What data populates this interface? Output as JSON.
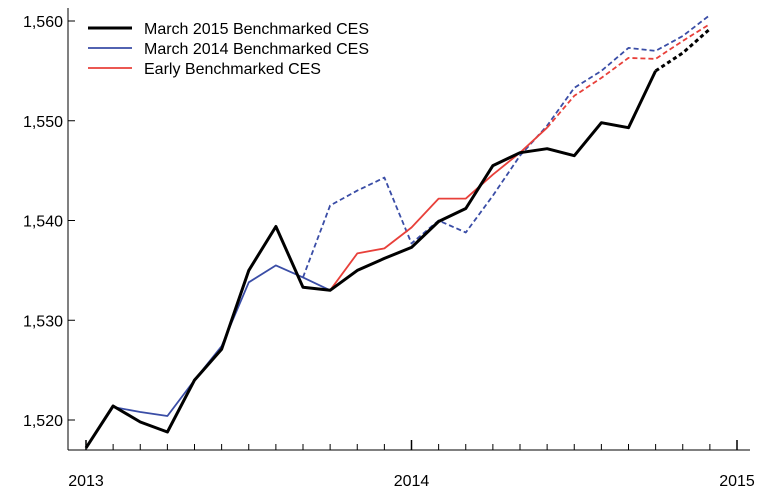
{
  "chart_data": {
    "type": "line",
    "title": "",
    "xlabel": "",
    "ylabel": "",
    "ylim": [
      1517,
      1561
    ],
    "xlim": [
      0,
      24
    ],
    "grid": false,
    "legend_position": "top-left",
    "y_ticks": [
      {
        "value": 1520,
        "label": "1,520"
      },
      {
        "value": 1530,
        "label": "1,530"
      },
      {
        "value": 1540,
        "label": "1,540"
      },
      {
        "value": 1550,
        "label": "1,550"
      },
      {
        "value": 1560,
        "label": "1,560"
      }
    ],
    "x_ticks": [
      {
        "value": 0,
        "label": "2013"
      },
      {
        "value": 12,
        "label": "2014"
      },
      {
        "value": 24,
        "label": "2015"
      }
    ],
    "x_minor_ticks": [
      1,
      2,
      3,
      4,
      5,
      6,
      7,
      8,
      9,
      10,
      11,
      13,
      14,
      15,
      16,
      17,
      18,
      19,
      20,
      21,
      22,
      23
    ],
    "series": [
      {
        "name": "March 2014 Benchmarked CES",
        "color": "#3a4da6",
        "stroke_width": 1.8,
        "segments": [
          {
            "style": "solid",
            "x": [
              0,
              1,
              2,
              3,
              4,
              5,
              6,
              7,
              8,
              9
            ],
            "y": [
              1517.2,
              1521.3,
              1520.8,
              1520.4,
              1524.0,
              1527.4,
              1533.8,
              1535.5,
              1534.3,
              1533.0
            ]
          },
          {
            "style": "dashed",
            "x": [
              8,
              9,
              10,
              11,
              12,
              13,
              14,
              15,
              16,
              17,
              18,
              19,
              20,
              21,
              22,
              23
            ],
            "y": [
              1534.3,
              1541.5,
              1543.0,
              1544.3,
              1537.7,
              1540.0,
              1538.8,
              1542.5,
              1546.5,
              1549.5,
              1553.3,
              1555.0,
              1557.3,
              1557.0,
              1558.5,
              1560.6
            ]
          }
        ]
      },
      {
        "name": "Early Benchmarked CES",
        "color": "#e8403a",
        "stroke_width": 1.8,
        "segments": [
          {
            "style": "solid",
            "x": [
              9,
              10,
              11,
              12,
              13,
              14,
              15,
              16,
              17
            ],
            "y": [
              1533.0,
              1536.7,
              1537.2,
              1539.3,
              1542.2,
              1542.2,
              1544.6,
              1546.8,
              1549.3
            ]
          },
          {
            "style": "dashed",
            "x": [
              17,
              18,
              19,
              20,
              21,
              22,
              23
            ],
            "y": [
              1549.3,
              1552.5,
              1554.3,
              1556.3,
              1556.2,
              1558.0,
              1559.7
            ]
          }
        ]
      },
      {
        "name": "March 2015 Benchmarked CES",
        "color": "#000000",
        "stroke_width": 3,
        "segments": [
          {
            "style": "solid",
            "x": [
              0,
              1,
              2,
              3,
              4,
              5,
              6,
              7,
              8,
              9,
              10,
              11,
              12,
              13,
              14,
              15,
              16,
              17,
              18,
              19,
              20,
              21
            ],
            "y": [
              1517.2,
              1521.4,
              1519.8,
              1518.8,
              1524.0,
              1527.1,
              1535.0,
              1539.4,
              1533.3,
              1533.0,
              1535.0,
              1536.2,
              1537.3,
              1539.9,
              1541.2,
              1545.5,
              1546.8,
              1547.2,
              1546.5,
              1549.8,
              1549.3,
              1555.0
            ]
          },
          {
            "style": "dashed",
            "x": [
              21,
              22,
              23
            ],
            "y": [
              1555.0,
              1556.8,
              1559.2
            ]
          }
        ]
      }
    ],
    "legend_order": [
      "March 2015 Benchmarked CES",
      "March 2014 Benchmarked CES",
      "Early Benchmarked CES"
    ]
  }
}
